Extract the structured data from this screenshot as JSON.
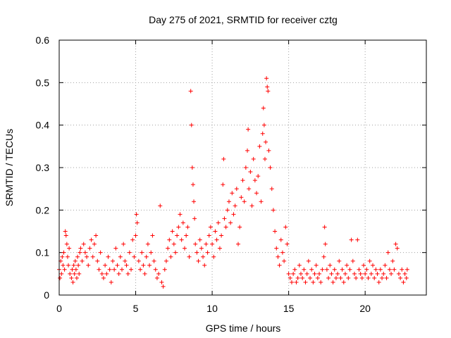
{
  "chart_data": {
    "type": "scatter",
    "title": "Day 275 of 2021, SRMTID for receiver cztg",
    "xlabel": "GPS time / hours",
    "ylabel": "SRMTID / TECUs",
    "xlim": [
      0,
      24
    ],
    "ylim": [
      0,
      0.6
    ],
    "x_ticks": [
      0,
      5,
      10,
      15,
      20
    ],
    "y_ticks": [
      0,
      0.1,
      0.2,
      0.3,
      0.4,
      0.5,
      0.6
    ],
    "x_tick_labels": [
      "0",
      "5",
      "10",
      "15",
      "20"
    ],
    "y_tick_labels": [
      "0",
      "0.1",
      "0.2",
      "0.3",
      "0.4",
      "0.5",
      "0.6"
    ],
    "grid": true,
    "marker": "plus",
    "color": "#ff0000",
    "series": [
      {
        "name": "SRMTID",
        "points": [
          [
            0.0,
            0.06
          ],
          [
            0.05,
            0.04
          ],
          [
            0.1,
            0.08
          ],
          [
            0.15,
            0.05
          ],
          [
            0.2,
            0.09
          ],
          [
            0.25,
            0.07
          ],
          [
            0.3,
            0.1
          ],
          [
            0.35,
            0.06
          ],
          [
            0.4,
            0.15
          ],
          [
            0.45,
            0.14
          ],
          [
            0.5,
            0.12
          ],
          [
            0.55,
            0.09
          ],
          [
            0.6,
            0.07
          ],
          [
            0.65,
            0.11
          ],
          [
            0.7,
            0.05
          ],
          [
            0.8,
            0.04
          ],
          [
            0.85,
            0.06
          ],
          [
            0.9,
            0.03
          ],
          [
            0.95,
            0.07
          ],
          [
            1.0,
            0.05
          ],
          [
            1.05,
            0.08
          ],
          [
            1.1,
            0.06
          ],
          [
            1.15,
            0.04
          ],
          [
            1.2,
            0.09
          ],
          [
            1.25,
            0.07
          ],
          [
            1.3,
            0.05
          ],
          [
            1.35,
            0.1
          ],
          [
            1.4,
            0.11
          ],
          [
            1.5,
            0.08
          ],
          [
            1.6,
            0.12
          ],
          [
            1.7,
            0.1
          ],
          [
            1.8,
            0.09
          ],
          [
            1.9,
            0.07
          ],
          [
            2.0,
            0.11
          ],
          [
            2.1,
            0.13
          ],
          [
            2.2,
            0.09
          ],
          [
            2.3,
            0.12
          ],
          [
            2.4,
            0.14
          ],
          [
            2.5,
            0.08
          ],
          [
            2.6,
            0.06
          ],
          [
            2.7,
            0.1
          ],
          [
            2.8,
            0.05
          ],
          [
            2.9,
            0.04
          ],
          [
            3.0,
            0.07
          ],
          [
            3.1,
            0.05
          ],
          [
            3.2,
            0.09
          ],
          [
            3.3,
            0.06
          ],
          [
            3.4,
            0.03
          ],
          [
            3.5,
            0.08
          ],
          [
            3.6,
            0.06
          ],
          [
            3.7,
            0.11
          ],
          [
            3.8,
            0.07
          ],
          [
            3.9,
            0.05
          ],
          [
            4.0,
            0.09
          ],
          [
            4.1,
            0.06
          ],
          [
            4.2,
            0.12
          ],
          [
            4.3,
            0.08
          ],
          [
            4.4,
            0.07
          ],
          [
            4.5,
            0.05
          ],
          [
            4.6,
            0.1
          ],
          [
            4.7,
            0.06
          ],
          [
            4.8,
            0.13
          ],
          [
            4.9,
            0.09
          ],
          [
            5.0,
            0.14
          ],
          [
            5.05,
            0.19
          ],
          [
            5.1,
            0.17
          ],
          [
            5.2,
            0.08
          ],
          [
            5.3,
            0.06
          ],
          [
            5.4,
            0.1
          ],
          [
            5.5,
            0.07
          ],
          [
            5.6,
            0.05
          ],
          [
            5.7,
            0.09
          ],
          [
            5.8,
            0.12
          ],
          [
            5.9,
            0.07
          ],
          [
            6.0,
            0.1
          ],
          [
            6.1,
            0.14
          ],
          [
            6.2,
            0.08
          ],
          [
            6.3,
            0.06
          ],
          [
            6.4,
            0.04
          ],
          [
            6.5,
            0.05
          ],
          [
            6.6,
            0.21
          ],
          [
            6.7,
            0.03
          ],
          [
            6.8,
            0.02
          ],
          [
            6.9,
            0.06
          ],
          [
            7.0,
            0.08
          ],
          [
            7.1,
            0.11
          ],
          [
            7.2,
            0.13
          ],
          [
            7.3,
            0.09
          ],
          [
            7.4,
            0.15
          ],
          [
            7.5,
            0.12
          ],
          [
            7.6,
            0.1
          ],
          [
            7.7,
            0.14
          ],
          [
            7.8,
            0.16
          ],
          [
            7.9,
            0.19
          ],
          [
            8.0,
            0.13
          ],
          [
            8.1,
            0.17
          ],
          [
            8.2,
            0.11
          ],
          [
            8.3,
            0.14
          ],
          [
            8.4,
            0.16
          ],
          [
            8.5,
            0.09
          ],
          [
            8.6,
            0.48
          ],
          [
            8.65,
            0.4
          ],
          [
            8.7,
            0.3
          ],
          [
            8.75,
            0.26
          ],
          [
            8.8,
            0.22
          ],
          [
            8.85,
            0.18
          ],
          [
            8.9,
            0.12
          ],
          [
            9.0,
            0.1
          ],
          [
            9.1,
            0.08
          ],
          [
            9.2,
            0.13
          ],
          [
            9.3,
            0.11
          ],
          [
            9.4,
            0.09
          ],
          [
            9.5,
            0.07
          ],
          [
            9.6,
            0.12
          ],
          [
            9.7,
            0.1
          ],
          [
            9.8,
            0.14
          ],
          [
            9.9,
            0.16
          ],
          [
            10.0,
            0.12
          ],
          [
            10.1,
            0.09
          ],
          [
            10.2,
            0.15
          ],
          [
            10.3,
            0.13
          ],
          [
            10.4,
            0.17
          ],
          [
            10.5,
            0.11
          ],
          [
            10.6,
            0.14
          ],
          [
            10.7,
            0.26
          ],
          [
            10.75,
            0.32
          ],
          [
            10.8,
            0.18
          ],
          [
            10.9,
            0.16
          ],
          [
            11.0,
            0.2
          ],
          [
            11.1,
            0.22
          ],
          [
            11.2,
            0.17
          ],
          [
            11.3,
            0.24
          ],
          [
            11.4,
            0.19
          ],
          [
            11.5,
            0.21
          ],
          [
            11.6,
            0.25
          ],
          [
            11.7,
            0.12
          ],
          [
            11.8,
            0.16
          ],
          [
            11.9,
            0.23
          ],
          [
            12.0,
            0.27
          ],
          [
            12.1,
            0.22
          ],
          [
            12.2,
            0.3
          ],
          [
            12.3,
            0.34
          ],
          [
            12.35,
            0.39
          ],
          [
            12.4,
            0.25
          ],
          [
            12.5,
            0.29
          ],
          [
            12.6,
            0.21
          ],
          [
            12.7,
            0.32
          ],
          [
            12.8,
            0.27
          ],
          [
            12.9,
            0.24
          ],
          [
            13.0,
            0.28
          ],
          [
            13.1,
            0.35
          ],
          [
            13.2,
            0.22
          ],
          [
            13.3,
            0.38
          ],
          [
            13.35,
            0.44
          ],
          [
            13.4,
            0.4
          ],
          [
            13.45,
            0.32
          ],
          [
            13.5,
            0.36
          ],
          [
            13.55,
            0.51
          ],
          [
            13.6,
            0.49
          ],
          [
            13.65,
            0.48
          ],
          [
            13.7,
            0.34
          ],
          [
            13.8,
            0.3
          ],
          [
            13.9,
            0.25
          ],
          [
            14.0,
            0.2
          ],
          [
            14.1,
            0.15
          ],
          [
            14.2,
            0.11
          ],
          [
            14.3,
            0.09
          ],
          [
            14.4,
            0.07
          ],
          [
            14.5,
            0.13
          ],
          [
            14.6,
            0.1
          ],
          [
            14.7,
            0.08
          ],
          [
            14.8,
            0.16
          ],
          [
            14.9,
            0.12
          ],
          [
            15.0,
            0.05
          ],
          [
            15.1,
            0.04
          ],
          [
            15.2,
            0.03
          ],
          [
            15.3,
            0.05
          ],
          [
            15.4,
            0.06
          ],
          [
            15.5,
            0.03
          ],
          [
            15.6,
            0.04
          ],
          [
            15.7,
            0.07
          ],
          [
            15.8,
            0.05
          ],
          [
            15.9,
            0.04
          ],
          [
            16.0,
            0.06
          ],
          [
            16.1,
            0.03
          ],
          [
            16.2,
            0.05
          ],
          [
            16.3,
            0.08
          ],
          [
            16.4,
            0.04
          ],
          [
            16.5,
            0.06
          ],
          [
            16.6,
            0.03
          ],
          [
            16.7,
            0.05
          ],
          [
            16.8,
            0.07
          ],
          [
            16.9,
            0.04
          ],
          [
            17.0,
            0.05
          ],
          [
            17.1,
            0.03
          ],
          [
            17.2,
            0.06
          ],
          [
            17.3,
            0.09
          ],
          [
            17.35,
            0.16
          ],
          [
            17.4,
            0.12
          ],
          [
            17.5,
            0.06
          ],
          [
            17.6,
            0.04
          ],
          [
            17.7,
            0.07
          ],
          [
            17.8,
            0.05
          ],
          [
            17.9,
            0.03
          ],
          [
            18.0,
            0.06
          ],
          [
            18.1,
            0.04
          ],
          [
            18.2,
            0.05
          ],
          [
            18.3,
            0.08
          ],
          [
            18.4,
            0.04
          ],
          [
            18.5,
            0.06
          ],
          [
            18.6,
            0.03
          ],
          [
            18.7,
            0.05
          ],
          [
            18.8,
            0.07
          ],
          [
            18.9,
            0.04
          ],
          [
            19.0,
            0.06
          ],
          [
            19.1,
            0.13
          ],
          [
            19.2,
            0.08
          ],
          [
            19.3,
            0.05
          ],
          [
            19.4,
            0.04
          ],
          [
            19.5,
            0.13
          ],
          [
            19.6,
            0.06
          ],
          [
            19.7,
            0.05
          ],
          [
            19.8,
            0.04
          ],
          [
            19.9,
            0.07
          ],
          [
            20.0,
            0.05
          ],
          [
            20.1,
            0.06
          ],
          [
            20.2,
            0.04
          ],
          [
            20.3,
            0.08
          ],
          [
            20.4,
            0.05
          ],
          [
            20.5,
            0.07
          ],
          [
            20.6,
            0.04
          ],
          [
            20.7,
            0.06
          ],
          [
            20.8,
            0.05
          ],
          [
            20.9,
            0.03
          ],
          [
            21.0,
            0.06
          ],
          [
            21.1,
            0.04
          ],
          [
            21.2,
            0.05
          ],
          [
            21.3,
            0.07
          ],
          [
            21.4,
            0.04
          ],
          [
            21.5,
            0.1
          ],
          [
            21.6,
            0.06
          ],
          [
            21.7,
            0.05
          ],
          [
            21.8,
            0.08
          ],
          [
            21.9,
            0.06
          ],
          [
            22.0,
            0.12
          ],
          [
            22.1,
            0.11
          ],
          [
            22.2,
            0.05
          ],
          [
            22.3,
            0.04
          ],
          [
            22.4,
            0.06
          ],
          [
            22.5,
            0.03
          ],
          [
            22.6,
            0.05
          ],
          [
            22.7,
            0.04
          ],
          [
            22.75,
            0.06
          ]
        ]
      }
    ]
  }
}
